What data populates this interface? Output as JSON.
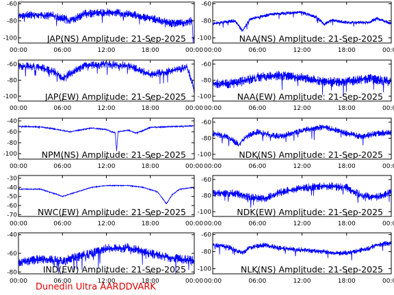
{
  "footer": "Dunedin Ultra AARDDVARK",
  "colors": {
    "trace": "#0000ff",
    "frame": "#000000",
    "footer": "#e00000"
  },
  "chart_data": [
    {
      "type": "line",
      "title": "JAP(NS) Amplitude: 21-Sep-2025",
      "x_ticks": [
        "00:00",
        "06:00",
        "12:00",
        "18:00",
        "00:00"
      ],
      "y_ticks": [
        -60,
        -80,
        -100
      ],
      "ylim": [
        -106,
        -58
      ],
      "noise": 5,
      "series": [
        {
          "x_hours": [
            0,
            5,
            7,
            9,
            12,
            15,
            18,
            21,
            23,
            23.7,
            23.8,
            24
          ],
          "values": [
            -73,
            -74,
            -80,
            -72,
            -70,
            -72,
            -77,
            -83,
            -82,
            -80,
            -95,
            -98
          ]
        }
      ]
    },
    {
      "type": "line",
      "title": "NAA(NS) Amplitude: 21-Sep-2025",
      "x_ticks": [
        "00:00",
        "06:00",
        "12:00",
        "18:00",
        "00:00"
      ],
      "y_ticks": [
        -60,
        -80,
        -100
      ],
      "ylim": [
        -106,
        -58
      ],
      "noise": 2,
      "series": [
        {
          "x_hours": [
            0,
            3,
            4,
            5,
            8,
            12,
            14,
            15,
            16,
            18,
            21,
            22,
            24
          ],
          "values": [
            -83,
            -80,
            -92,
            -78,
            -72,
            -70,
            -76,
            -84,
            -79,
            -82,
            -82,
            -77,
            -83
          ]
        }
      ]
    },
    {
      "type": "line",
      "title": "JAP(EW) Amplitude: 21-Sep-2025",
      "x_ticks": [
        "00:00",
        "06:00",
        "12:00",
        "18:00",
        "00:00"
      ],
      "y_ticks": [
        -60,
        -80,
        -100
      ],
      "ylim": [
        -106,
        -55
      ],
      "noise": 5,
      "series": [
        {
          "x_hours": [
            0,
            3,
            5,
            6,
            7,
            9,
            12,
            15,
            18,
            20,
            23,
            23.8,
            24
          ],
          "values": [
            -62,
            -64,
            -70,
            -78,
            -72,
            -62,
            -60,
            -62,
            -73,
            -70,
            -64,
            -85,
            -92
          ]
        }
      ]
    },
    {
      "type": "line",
      "title": "NAA(EW) Amplitude: 21-Sep-2025",
      "x_ticks": [
        "00:00",
        "06:00",
        "12:00",
        "18:00",
        "00:00"
      ],
      "y_ticks": [
        -60,
        -80,
        -100
      ],
      "ylim": [
        -106,
        -55
      ],
      "noise": 6,
      "series": [
        {
          "x_hours": [
            0,
            3,
            6,
            9,
            12,
            15,
            18,
            21,
            24
          ],
          "values": [
            -84,
            -84,
            -76,
            -74,
            -77,
            -82,
            -82,
            -78,
            -82
          ]
        }
      ]
    },
    {
      "type": "line",
      "title": "NPM(NS) Amplitude: 21-Sep-2025",
      "x_ticks": [
        "00:00",
        "06:00",
        "12:00",
        "18:00",
        "00:00"
      ],
      "y_ticks": [
        -40,
        -60,
        -80,
        -100
      ],
      "ylim": [
        -110,
        -35
      ],
      "noise": 1,
      "series": [
        {
          "x_hours": [
            0,
            3,
            5,
            7,
            10,
            12,
            13.2,
            13.4,
            13.6,
            15,
            16,
            17,
            18,
            20,
            24
          ],
          "values": [
            -50,
            -51,
            -55,
            -60,
            -53,
            -56,
            -62,
            -95,
            -60,
            -57,
            -62,
            -58,
            -52,
            -51,
            -49
          ]
        }
      ]
    },
    {
      "type": "line",
      "title": "NDK(NS) Amplitude: 21-Sep-2025",
      "x_ticks": [
        "00:00",
        "06:00",
        "12:00",
        "18:00",
        "00:00"
      ],
      "y_ticks": [
        -60,
        -80,
        -100
      ],
      "ylim": [
        -106,
        -55
      ],
      "noise": 4,
      "series": [
        {
          "x_hours": [
            0,
            2,
            3.5,
            4.5,
            6,
            9,
            12,
            15,
            18,
            20,
            22,
            24
          ],
          "values": [
            -74,
            -78,
            -88,
            -78,
            -72,
            -78,
            -70,
            -66,
            -74,
            -78,
            -74,
            -73
          ]
        }
      ]
    },
    {
      "type": "line",
      "title": "NWC(EW) Amplitude: 21-Sep-2025",
      "x_ticks": [
        "00:00",
        "06:00",
        "12:00",
        "18:00",
        "00:00"
      ],
      "y_ticks": [
        -30,
        -40,
        -50,
        -60,
        -70
      ],
      "ylim": [
        -72,
        -27
      ],
      "noise": 0.5,
      "series": [
        {
          "x_hours": [
            0,
            3,
            5,
            6,
            8,
            10,
            12,
            15,
            17,
            19,
            20.2,
            21,
            22,
            24
          ],
          "values": [
            -42,
            -42,
            -47,
            -50,
            -45,
            -40,
            -38,
            -38,
            -40,
            -45,
            -58,
            -48,
            -42,
            -40
          ]
        }
      ]
    },
    {
      "type": "line",
      "title": "NDK(EW) Amplitude: 21-Sep-2025",
      "x_ticks": [
        "00:00",
        "06:00",
        "12:00",
        "18:00",
        "00:00"
      ],
      "y_ticks": [
        -60,
        -80,
        -100
      ],
      "ylim": [
        -106,
        -55
      ],
      "noise": 5,
      "series": [
        {
          "x_hours": [
            0,
            3,
            5,
            7,
            9,
            12,
            15,
            18,
            20,
            22,
            24
          ],
          "values": [
            -77,
            -77,
            -82,
            -84,
            -76,
            -70,
            -68,
            -70,
            -80,
            -82,
            -76
          ]
        }
      ]
    },
    {
      "type": "line",
      "title": "IND(EW) Amplitude: 21-Sep-2025",
      "x_ticks": [
        "00:00",
        "06:00",
        "12:00",
        "18:00",
        "00:00"
      ],
      "y_ticks": [
        -40,
        -60,
        -80
      ],
      "ylim": [
        -82,
        -38
      ],
      "noise": 5,
      "series": [
        {
          "x_hours": [
            0,
            3,
            6,
            9,
            12,
            15,
            18,
            21,
            24
          ],
          "values": [
            -70,
            -66,
            -68,
            -62,
            -55,
            -54,
            -60,
            -65,
            -68
          ]
        }
      ]
    },
    {
      "type": "line",
      "title": "NLK(NS) Amplitude: 21-Sep-2025",
      "x_ticks": [
        "00:00",
        "06:00",
        "12:00",
        "18:00",
        "00:00"
      ],
      "y_ticks": [
        -60,
        -80,
        -100
      ],
      "ylim": [
        -106,
        -58
      ],
      "noise": 3,
      "series": [
        {
          "x_hours": [
            0,
            2,
            4,
            5,
            7,
            9,
            12,
            15,
            17,
            19,
            21,
            22,
            24
          ],
          "values": [
            -72,
            -74,
            -82,
            -75,
            -72,
            -76,
            -78,
            -80,
            -82,
            -80,
            -76,
            -72,
            -70
          ]
        }
      ]
    }
  ]
}
